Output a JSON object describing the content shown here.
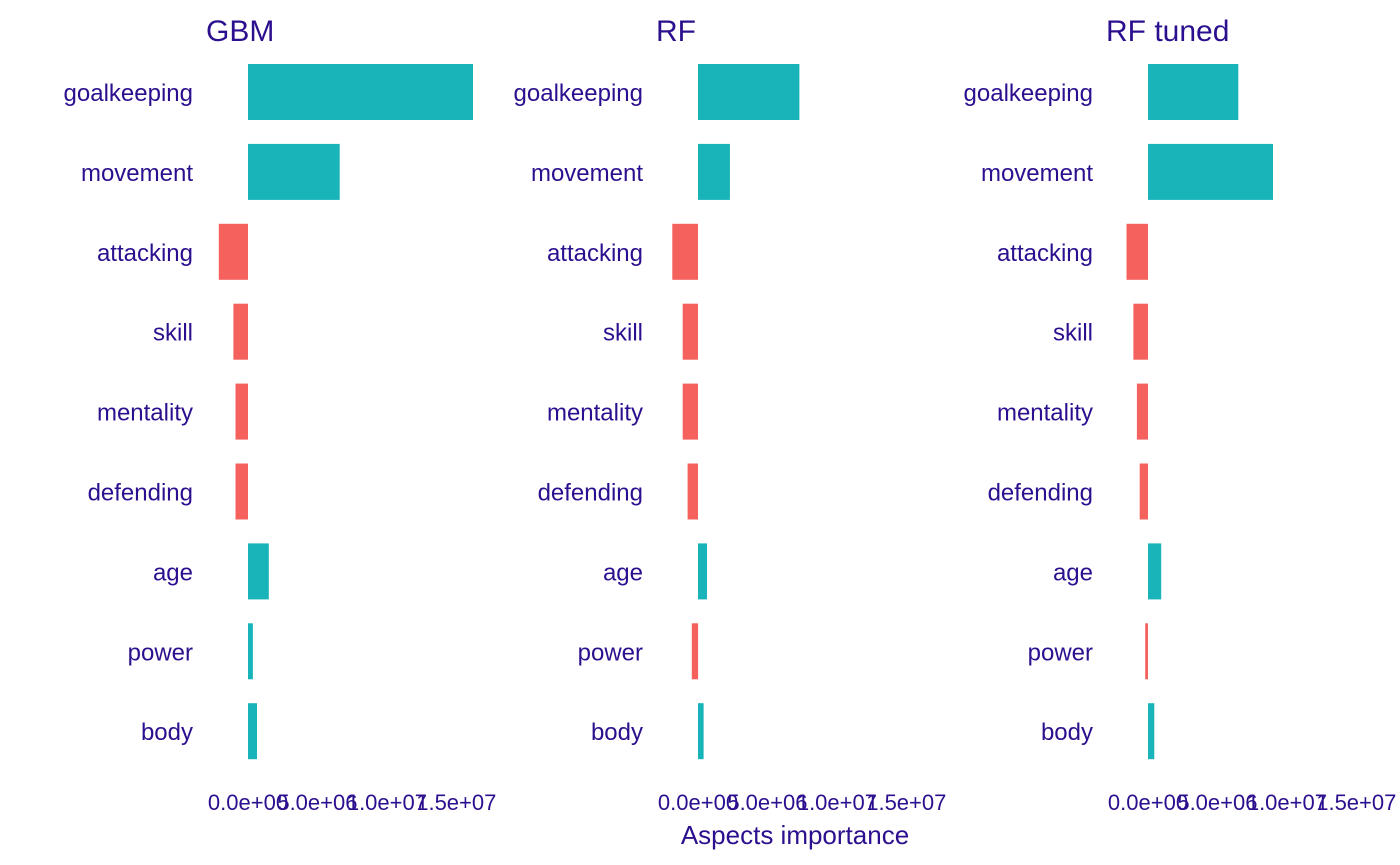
{
  "chart_data": {
    "type": "bar",
    "orientation": "horizontal",
    "xlabel": "Aspects importance",
    "colors": {
      "positive": "#18b4b9",
      "negative": "#f5615d",
      "text": "#2c0f8e"
    },
    "categories": [
      "goalkeeping",
      "movement",
      "attacking",
      "skill",
      "mentality",
      "defending",
      "age",
      "power",
      "body"
    ],
    "xticks": [
      0,
      5000000,
      10000000,
      15000000
    ],
    "xtick_labels": [
      "0.0e+00",
      "5.0e+06",
      "1.0e+07",
      "1.5e+07"
    ],
    "xlim": [
      -2500000,
      17000000
    ],
    "grid": false,
    "panels": [
      {
        "title": "GBM",
        "values": [
          16200000,
          6600000,
          -2100000,
          -1050000,
          -900000,
          -900000,
          1500000,
          350000,
          650000
        ]
      },
      {
        "title": "RF",
        "values": [
          7300000,
          2300000,
          -1850000,
          -1100000,
          -1100000,
          -750000,
          650000,
          -450000,
          400000
        ]
      },
      {
        "title": "RF tuned",
        "values": [
          6500000,
          9000000,
          -1550000,
          -1050000,
          -800000,
          -600000,
          950000,
          -200000,
          450000
        ]
      }
    ]
  }
}
